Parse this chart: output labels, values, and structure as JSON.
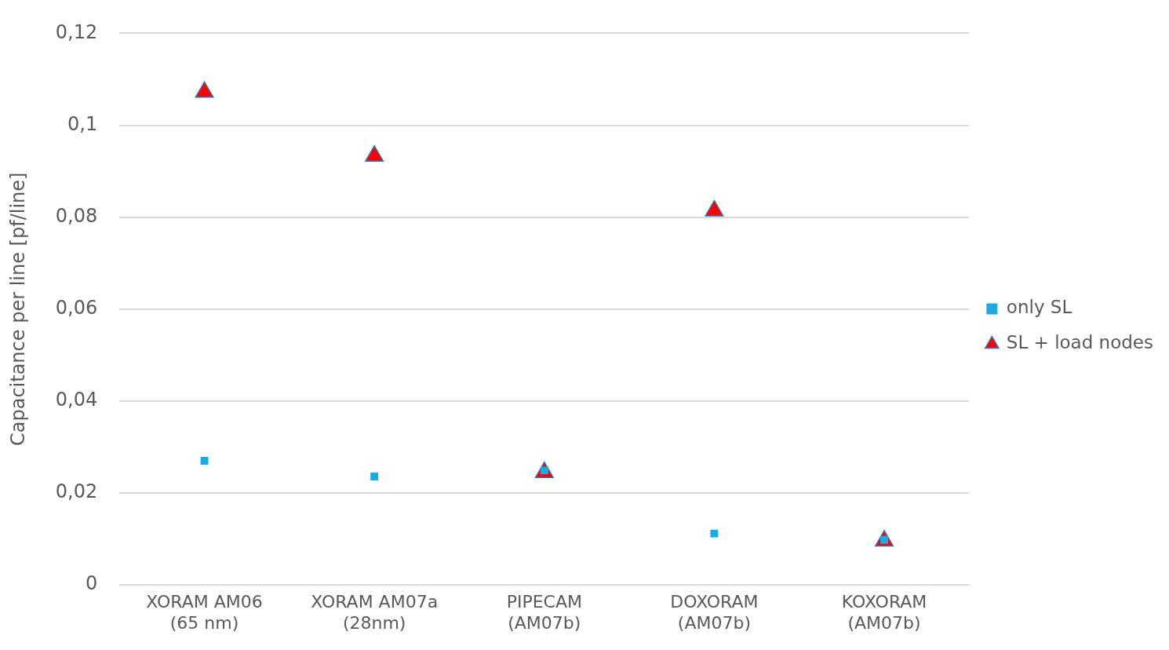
{
  "chart_data": {
    "type": "scatter",
    "ylabel": "Capacitance per line [pf/line]",
    "categories": [
      "XORAM AM06\n(65 nm)",
      "XORAM AM07a\n(28nm)",
      "PIPECAM\n(AM07b)",
      "DOXORAM\n(AM07b)",
      "KOXORAM\n(AM07b)"
    ],
    "series": [
      {
        "name": "only SL",
        "color": "#1aabe2",
        "marker": "square",
        "values": [
          0.027,
          0.0236,
          0.0249,
          0.0112,
          0.0098
        ]
      },
      {
        "name": "SL + load nodes",
        "color": "#ff0000",
        "marker": "triangle",
        "values": [
          0.1072,
          0.0933,
          0.0245,
          0.0814,
          0.0096
        ]
      }
    ],
    "ylim": [
      0,
      0.12
    ],
    "yticks": [
      {
        "value": 0,
        "label": "0"
      },
      {
        "value": 0.02,
        "label": "0,02"
      },
      {
        "value": 0.04,
        "label": "0,04"
      },
      {
        "value": 0.06,
        "label": "0,06"
      },
      {
        "value": 0.08,
        "label": "0,08"
      },
      {
        "value": 0.1,
        "label": "0,1"
      },
      {
        "value": 0.12,
        "label": "0,12"
      }
    ],
    "grid": "y",
    "legend": "right"
  }
}
